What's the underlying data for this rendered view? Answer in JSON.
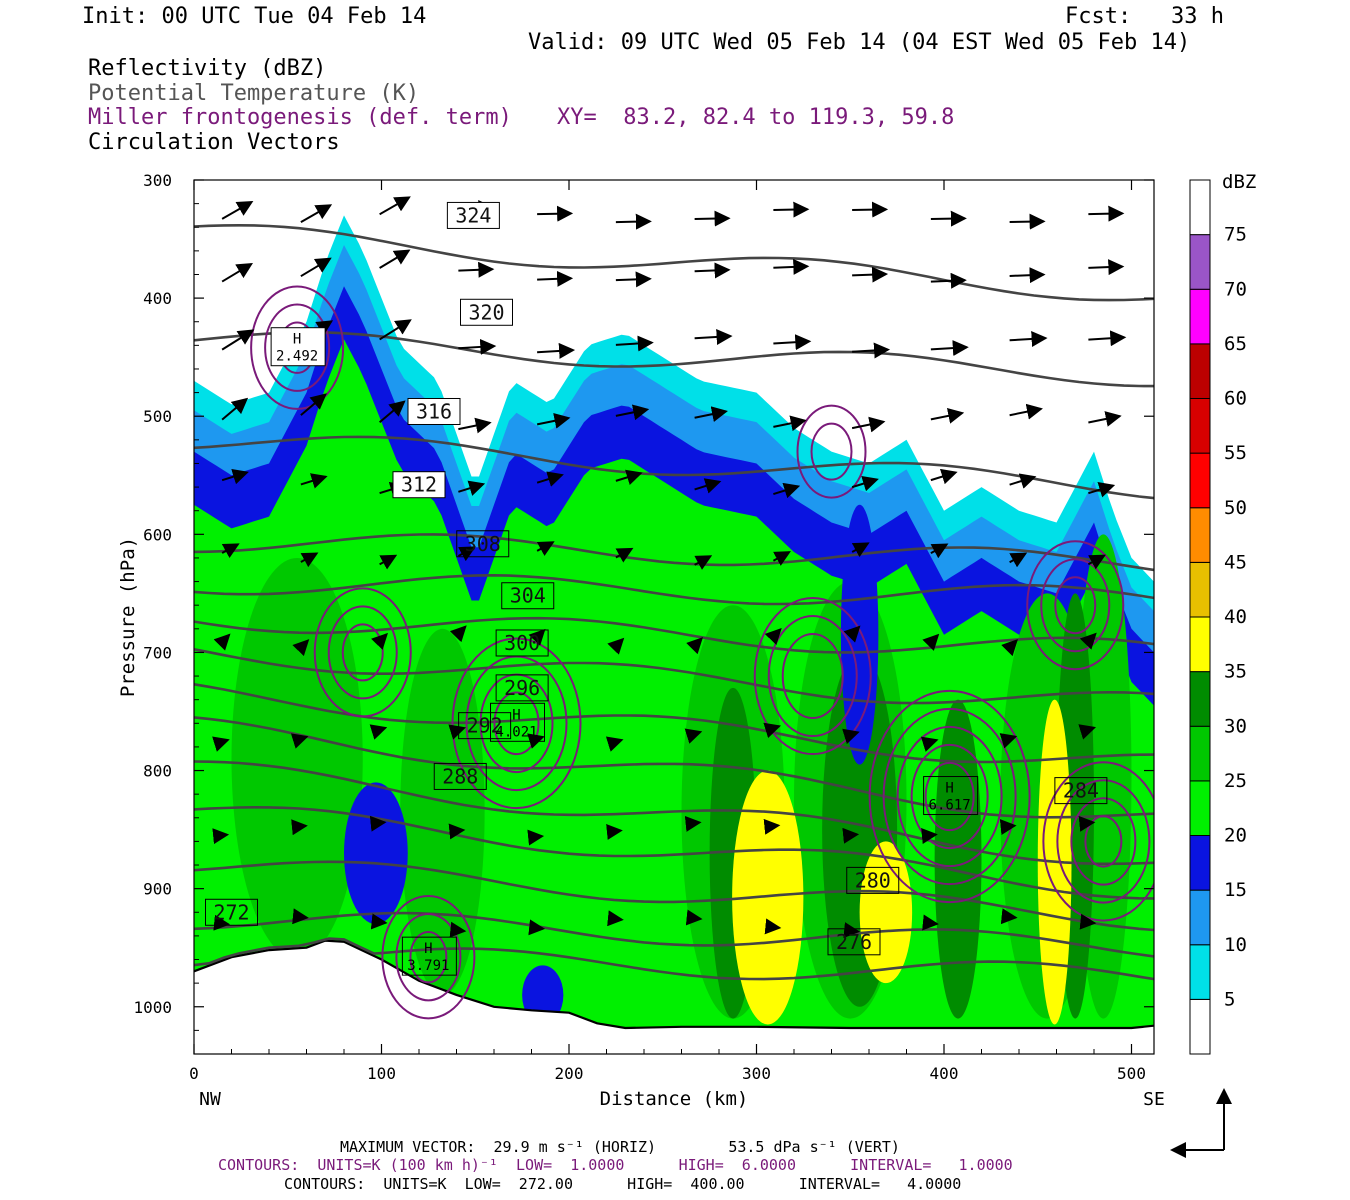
{
  "header": {
    "init": "Init: 00 UTC Tue 04 Feb 14",
    "fcst": "Fcst:   33 h",
    "valid": "Valid: 09 UTC Wed 05 Feb 14 (04 EST Wed 05 Feb 14)"
  },
  "fields": {
    "reflectivity": "Reflectivity (dBZ)",
    "theta": "Potential Temperature (K)",
    "frontogenesis": "Miller frontogenesis (def. term)",
    "xy": "XY=  83.2, 82.4 to 119.3, 59.8",
    "vectors": "Circulation Vectors"
  },
  "colors": {
    "frontogenesis": "#7a1a7a",
    "theta": "#444444",
    "terrain": "#000000"
  },
  "footer": {
    "max_vector": "MAXIMUM VECTOR:  29.9 m s⁻¹ (HORIZ)        53.5 dPa s⁻¹ (VERT)",
    "contours_fronto": "CONTOURS:  UNITS=K (100 km h)⁻¹  LOW=  1.0000      HIGH=  6.0000      INTERVAL=   1.0000",
    "contours_theta": "CONTOURS:  UNITS=K  LOW=  272.00      HIGH=  400.00      INTERVAL=   4.0000"
  },
  "chart_data": {
    "type": "contour-cross-section",
    "xlabel": "Distance (km)",
    "ylabel": "Pressure (hPa)",
    "xlim": [
      0,
      512
    ],
    "ylim": [
      1040,
      300
    ],
    "x_ticks": [
      0,
      100,
      200,
      300,
      400,
      500
    ],
    "y_ticks": [
      300,
      400,
      500,
      600,
      700,
      800,
      900,
      1000
    ],
    "x_end_labels": {
      "left": "NW",
      "right": "SE"
    },
    "colorbar": {
      "unit": "dBZ",
      "levels": [
        5,
        10,
        15,
        20,
        25,
        30,
        35,
        40,
        45,
        50,
        55,
        60,
        65,
        70,
        75
      ],
      "colors": [
        "#00e0e8",
        "#1e98f0",
        "#0a14e0",
        "#00f000",
        "#00c800",
        "#008c00",
        "#ffff00",
        "#e8c000",
        "#ff8c00",
        "#ff0000",
        "#d80000",
        "#bc0000",
        "#ff00ff",
        "#9a55c8",
        "#ffffff"
      ]
    },
    "reflectivity_profile": {
      "x": [
        0,
        20,
        40,
        60,
        70,
        80,
        90,
        110,
        130,
        150,
        170,
        190,
        210,
        230,
        250,
        270,
        300,
        320,
        340,
        360,
        380,
        400,
        420,
        440,
        460,
        480,
        490,
        500,
        512
      ],
      "echo_top_hpa": [
        470,
        490,
        480,
        420,
        370,
        330,
        360,
        440,
        470,
        560,
        470,
        490,
        440,
        430,
        450,
        470,
        480,
        510,
        530,
        540,
        520,
        580,
        560,
        580,
        590,
        530,
        580,
        620,
        640
      ]
    },
    "theta_levels": [
      {
        "value": 272,
        "p_left": 955,
        "p_right": 975,
        "label_x": 20,
        "label_p": 920
      },
      {
        "value": 276,
        "p_left": 925,
        "p_right": 950,
        "label_x": 352,
        "label_p": 945
      },
      {
        "value": 280,
        "p_left": 880,
        "p_right": 925,
        "label_x": 362,
        "label_p": 893
      },
      {
        "value": 284,
        "p_left": 835,
        "p_right": 900,
        "label_x": 473,
        "label_p": 817
      },
      {
        "value": 288,
        "p_left": 800,
        "p_right": 875,
        "label_x": 142,
        "label_p": 805
      },
      {
        "value": 292,
        "p_left": 765,
        "p_right": 840,
        "label_x": 155,
        "label_p": 762
      },
      {
        "value": 296,
        "p_left": 735,
        "p_right": 795,
        "label_x": 175,
        "label_p": 730
      },
      {
        "value": 300,
        "p_left": 700,
        "p_right": 745,
        "label_x": 175,
        "label_p": 692
      },
      {
        "value": 304,
        "p_left": 670,
        "p_right": 700,
        "label_x": 178,
        "label_p": 652
      },
      {
        "value": 308,
        "p_left": 640,
        "p_right": 655,
        "label_x": 154,
        "label_p": 608
      },
      {
        "value": 312,
        "p_left": 605,
        "p_right": 625,
        "label_x": 120,
        "label_p": 558
      },
      {
        "value": 316,
        "p_left": 520,
        "p_right": 560,
        "label_x": 128,
        "label_p": 496
      },
      {
        "value": 320,
        "p_left": 435,
        "p_right": 465,
        "label_x": 156,
        "label_p": 412
      },
      {
        "value": 324,
        "p_left": 345,
        "p_right": 395,
        "label_x": 149,
        "label_p": 330
      }
    ],
    "frontogenesis_maxima": [
      {
        "label": "H",
        "value": "2.492",
        "x": 55,
        "p": 442
      },
      {
        "label": "H",
        "value": "4.021",
        "x": 172,
        "p": 760
      },
      {
        "label": "H",
        "value": "6.617",
        "x": 403,
        "p": 822
      },
      {
        "label": "H",
        "value": "3.791",
        "x": 125,
        "p": 958
      }
    ]
  }
}
